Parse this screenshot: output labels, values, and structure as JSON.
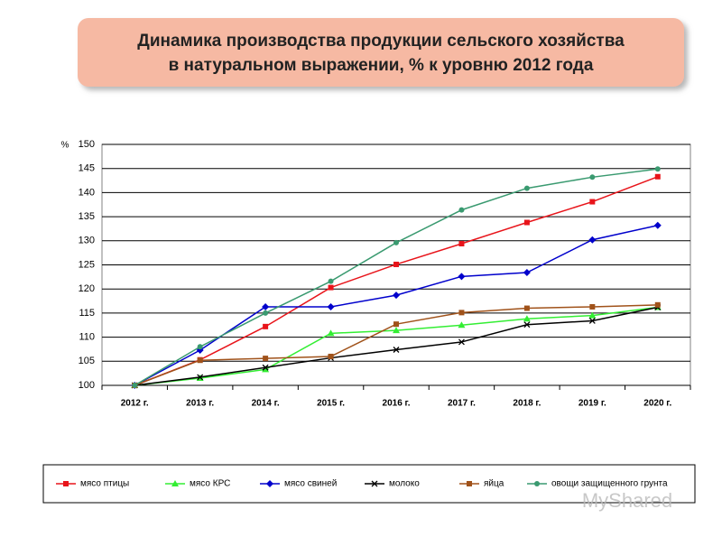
{
  "chart_data": {
    "type": "line",
    "title": "Динамика производства продукции сельского хозяйства",
    "subtitle": "в натуральном выражении, % к уровню 2012 года",
    "y_label": "%",
    "watermark": "MyShared",
    "categories": [
      "2012 г.",
      "2013 г.",
      "2014 г.",
      "2015 г.",
      "2016 г.",
      "2017 г.",
      "2018 г.",
      "2019 г.",
      "2020 г."
    ],
    "ylim": [
      100,
      150
    ],
    "yticks": [
      100,
      105,
      110,
      115,
      120,
      125,
      130,
      135,
      140,
      145,
      150
    ],
    "grid": true,
    "series": [
      {
        "name": "мясо птицы",
        "color": "#e8141a",
        "marker": "square",
        "values": [
          100,
          105.3,
          112.2,
          120.3,
          125.1,
          129.4,
          133.8,
          138.1,
          143.3
        ]
      },
      {
        "name": "мясо КРС",
        "color": "#33ee33",
        "marker": "triangle",
        "values": [
          100,
          101.5,
          103.3,
          110.8,
          111.4,
          112.5,
          113.8,
          114.5,
          116.2
        ]
      },
      {
        "name": "мясо свиней",
        "color": "#0000cc",
        "marker": "diamond",
        "values": [
          100,
          107.3,
          116.3,
          116.3,
          118.7,
          122.6,
          123.4,
          130.2,
          133.2
        ]
      },
      {
        "name": "молоко",
        "color": "#000000",
        "marker": "x",
        "values": [
          100,
          101.7,
          103.7,
          105.7,
          107.4,
          109.0,
          112.6,
          113.4,
          116.2
        ]
      },
      {
        "name": "яйца",
        "color": "#a0521a",
        "marker": "square",
        "values": [
          100,
          105.2,
          105.6,
          106.0,
          112.7,
          115.1,
          116.0,
          116.3,
          116.7
        ]
      },
      {
        "name": "овощи защищенного грунта",
        "color": "#3a9a70",
        "marker": "circle",
        "values": [
          100,
          108.0,
          115.0,
          121.6,
          129.6,
          136.4,
          140.9,
          143.2,
          144.9
        ]
      }
    ]
  }
}
